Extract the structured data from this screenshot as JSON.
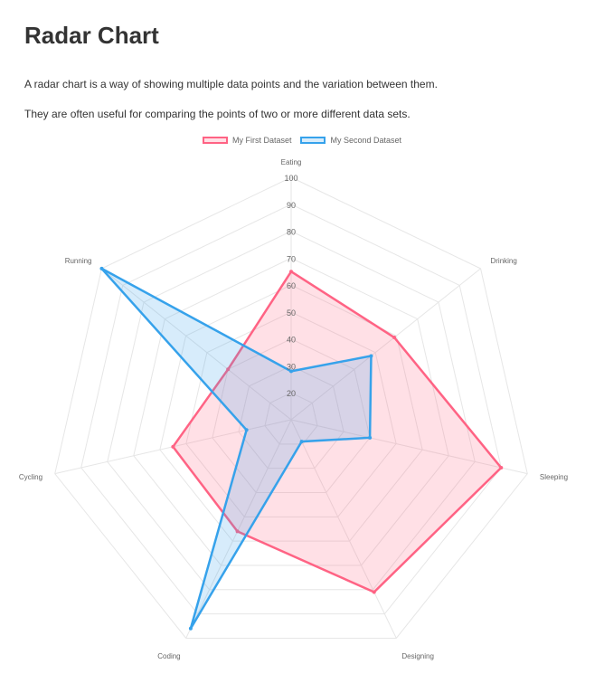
{
  "page": {
    "title": "Radar Chart",
    "para1": "A radar chart is a way of showing multiple data points and the variation between them.",
    "para2": "They are often useful for comparing the points of two or more different data sets."
  },
  "chart_data": {
    "type": "radar",
    "labels": [
      "Eating",
      "Drinking",
      "Sleeping",
      "Designing",
      "Coding",
      "Cycling",
      "Running"
    ],
    "rlim": [
      10,
      100
    ],
    "ticks": [
      20,
      30,
      40,
      50,
      60,
      70,
      80,
      90,
      100
    ],
    "grid": true,
    "legend_position": "top-center",
    "series": [
      {
        "name": "My First Dataset",
        "values": [
          65,
          59,
          90,
          81,
          56,
          55,
          40
        ],
        "color": "#ff6384",
        "fill": "rgba(255,99,132,0.2)"
      },
      {
        "name": "My Second Dataset",
        "values": [
          28,
          48,
          40,
          19,
          96,
          27,
          100
        ],
        "color": "#36a2eb",
        "fill": "rgba(54,162,235,0.2)"
      }
    ]
  }
}
